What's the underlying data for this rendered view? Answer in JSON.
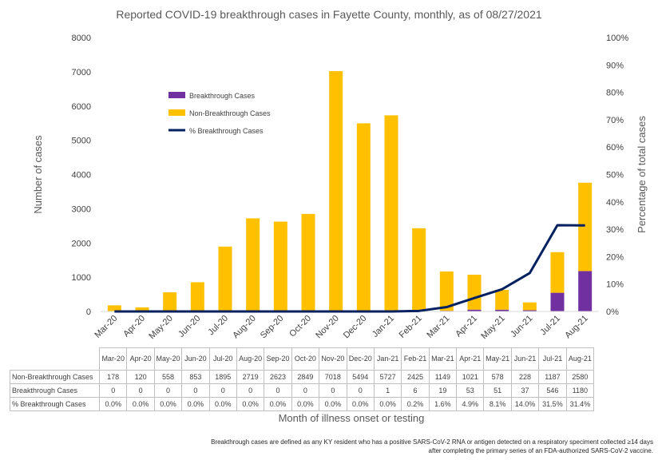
{
  "chart_data": {
    "type": "bar",
    "title": "Reported COVID-19 breakthrough cases in Fayette County, monthly, as of 08/27/2021",
    "xlabel": "Month of illness onset or testing",
    "ylabel": "Number of cases",
    "y2label": "Percentage of total cases",
    "ylim": [
      0,
      8000
    ],
    "y2lim": [
      0,
      100
    ],
    "yticks": [
      "0",
      "1000",
      "2000",
      "3000",
      "4000",
      "5000",
      "6000",
      "7000",
      "8000"
    ],
    "y2ticks": [
      "0%",
      "10%",
      "20%",
      "30%",
      "40%",
      "50%",
      "60%",
      "70%",
      "80%",
      "90%",
      "100%"
    ],
    "stacked": true,
    "grid": false,
    "legend_position": "top-left",
    "categories": [
      "Mar-20",
      "Apr-20",
      "May-20",
      "Jun-20",
      "Jul-20",
      "Aug-20",
      "Sep-20",
      "Oct-20",
      "Nov-20",
      "Dec-20",
      "Jan-21",
      "Feb-21",
      "Mar-21",
      "Apr-21",
      "May-21",
      "Jun-21",
      "Jul-21",
      "Aug-21"
    ],
    "series": [
      {
        "name": "Breakthrough Cases",
        "type": "bar",
        "color": "#7030a0",
        "values": [
          0,
          0,
          0,
          0,
          0,
          0,
          0,
          0,
          0,
          0,
          1,
          6,
          19,
          53,
          51,
          37,
          546,
          1180
        ]
      },
      {
        "name": "Non-Breakthrough Cases",
        "type": "bar",
        "color": "#ffc000",
        "values": [
          178,
          120,
          558,
          853,
          1895,
          2719,
          2623,
          2849,
          7018,
          5494,
          5727,
          2425,
          1149,
          1021,
          578,
          228,
          1187,
          2580
        ]
      },
      {
        "name": "% Breakthrough Cases",
        "type": "line",
        "axis": "right",
        "color": "#002060",
        "values": [
          0.0,
          0.0,
          0.0,
          0.0,
          0.0,
          0.0,
          0.0,
          0.0,
          0.0,
          0.0,
          0.0,
          0.2,
          1.6,
          4.9,
          8.1,
          14.0,
          31.5,
          31.4
        ]
      }
    ]
  },
  "table": {
    "header": [
      "Mar-20",
      "Apr-20",
      "May-20",
      "Jun-20",
      "Jul-20",
      "Aug-20",
      "Sep-20",
      "Oct-20",
      "Nov-20",
      "Dec-20",
      "Jan-21",
      "Feb-21",
      "Mar-21",
      "Apr-21",
      "May-21",
      "Jun-21",
      "Jul-21",
      "Aug-21"
    ],
    "rows": [
      {
        "label": "Non-Breakthrough Cases",
        "cells": [
          "178",
          "120",
          "558",
          "853",
          "1895",
          "2719",
          "2623",
          "2849",
          "7018",
          "5494",
          "5727",
          "2425",
          "1149",
          "1021",
          "578",
          "228",
          "1187",
          "2580"
        ]
      },
      {
        "label": "Breakthrough Cases",
        "cells": [
          "0",
          "0",
          "0",
          "0",
          "0",
          "0",
          "0",
          "0",
          "0",
          "0",
          "1",
          "6",
          "19",
          "53",
          "51",
          "37",
          "546",
          "1180"
        ]
      },
      {
        "label": "% Breakthrough Cases",
        "cells": [
          "0.0%",
          "0.0%",
          "0.0%",
          "0.0%",
          "0.0%",
          "0.0%",
          "0.0%",
          "0.0%",
          "0.0%",
          "0.0%",
          "0.0%",
          "0.2%",
          "1.6%",
          "4.9%",
          "8.1%",
          "14.0%",
          "31.5%",
          "31.4%"
        ]
      }
    ]
  },
  "footnote": "Breakthrough cases are defined as any KY resident who has a positive SARS-CoV-2 RNA or antigen detected on a respiratory speciment collected ≥14 days after completing the primary series of an FDA-authorized SARS-CoV-2 vaccine."
}
